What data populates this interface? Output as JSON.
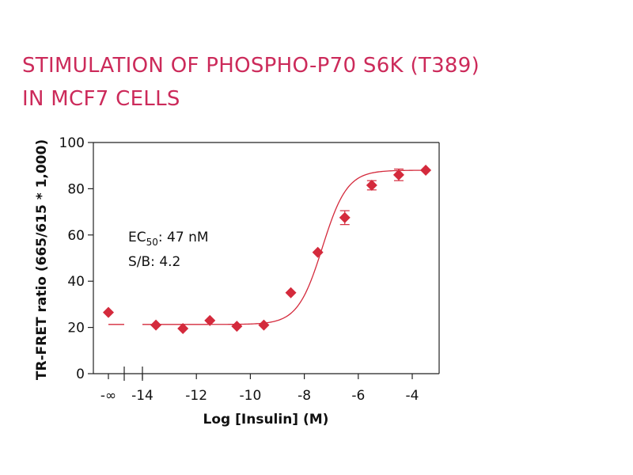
{
  "chart_data": {
    "type": "scatter",
    "title_lines": [
      "STIMULATION OF PHOSPHO-P70 S6K (T389)",
      "IN MCF7 CELLS"
    ],
    "xlabel": "Log [Insulin] (M)",
    "ylabel": "TR-FRET ratio (665/615 * 1,000)",
    "xlim": [
      -15.5,
      -3.0
    ],
    "ylim": [
      0,
      100
    ],
    "x_ticks": [
      -14,
      -12,
      -10,
      -8,
      -6,
      -4
    ],
    "x_tick_labels": [
      "-14",
      "-12",
      "-10",
      "-8",
      "-6",
      "-4"
    ],
    "y_ticks": [
      0,
      20,
      40,
      60,
      80,
      100
    ],
    "y_tick_labels": [
      "0",
      "20",
      "40",
      "60",
      "80",
      "100"
    ],
    "baseline_label": "-∞",
    "baseline_point": {
      "y": 26.5
    },
    "baseline_fit_level": 21.3,
    "points": [
      {
        "x": -13.5,
        "y": 21.0,
        "err": 0.8
      },
      {
        "x": -12.5,
        "y": 19.5,
        "err": 0.8
      },
      {
        "x": -11.5,
        "y": 23.0,
        "err": 0.8
      },
      {
        "x": -10.5,
        "y": 20.5,
        "err": 0.8
      },
      {
        "x": -9.5,
        "y": 21.0,
        "err": 0.8
      },
      {
        "x": -8.5,
        "y": 35.0,
        "err": 0.8
      },
      {
        "x": -7.5,
        "y": 52.5,
        "err": 0.8
      },
      {
        "x": -6.5,
        "y": 67.5,
        "err": 3.0
      },
      {
        "x": -5.5,
        "y": 81.5,
        "err": 2.0
      },
      {
        "x": -4.5,
        "y": 86.0,
        "err": 2.5
      },
      {
        "x": -3.5,
        "y": 88.0,
        "err": 0.8
      }
    ],
    "fit": {
      "bottom": 21.3,
      "top": 88.0,
      "log_ec50": -7.33,
      "hill": 0.95
    },
    "annotations": {
      "ec_prefix": "EC",
      "ec_sub": "50",
      "ec_value": ": 47 nM",
      "sb": "S/B: 4.2"
    },
    "marker_color": "#d42a3c",
    "line_color": "#d42a3c",
    "title_color": "#cc2a5a"
  }
}
